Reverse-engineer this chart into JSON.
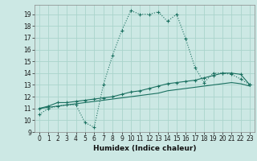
{
  "xlabel": "Humidex (Indice chaleur)",
  "bg_color": "#cce8e4",
  "grid_color": "#aad4cc",
  "line_color": "#1a7060",
  "xlim": [
    -0.5,
    23.5
  ],
  "ylim": [
    9,
    19.8
  ],
  "xticks": [
    0,
    1,
    2,
    3,
    4,
    5,
    6,
    7,
    8,
    9,
    10,
    11,
    12,
    13,
    14,
    15,
    16,
    17,
    18,
    19,
    20,
    21,
    22,
    23
  ],
  "yticks": [
    9,
    10,
    11,
    12,
    13,
    14,
    15,
    16,
    17,
    18,
    19
  ],
  "curve1_x": [
    0,
    1,
    2,
    3,
    4,
    5,
    6,
    7,
    8,
    9,
    10,
    11,
    12,
    13,
    14,
    15,
    16,
    17,
    18,
    19,
    20,
    21,
    22,
    23
  ],
  "curve1_y": [
    10.5,
    11.0,
    11.2,
    11.3,
    11.3,
    9.8,
    9.4,
    13.0,
    15.5,
    17.6,
    19.3,
    19.0,
    19.0,
    19.2,
    18.4,
    19.0,
    16.9,
    14.5,
    13.2,
    14.0,
    14.0,
    13.9,
    13.5,
    13.0
  ],
  "curve2_x": [
    0,
    1,
    2,
    3,
    4,
    5,
    6,
    7,
    8,
    9,
    10,
    11,
    12,
    13,
    14,
    15,
    16,
    17,
    18,
    19,
    20,
    21,
    22,
    23
  ],
  "curve2_y": [
    11.0,
    11.2,
    11.5,
    11.5,
    11.6,
    11.7,
    11.8,
    11.9,
    12.0,
    12.2,
    12.4,
    12.5,
    12.7,
    12.9,
    13.1,
    13.2,
    13.3,
    13.4,
    13.6,
    13.8,
    14.0,
    14.0,
    13.9,
    13.0
  ],
  "curve3_x": [
    0,
    1,
    2,
    3,
    4,
    5,
    6,
    7,
    8,
    9,
    10,
    11,
    12,
    13,
    14,
    15,
    16,
    17,
    18,
    19,
    20,
    21,
    22,
    23
  ],
  "curve3_y": [
    11.0,
    11.1,
    11.2,
    11.3,
    11.4,
    11.5,
    11.6,
    11.7,
    11.8,
    11.9,
    12.0,
    12.1,
    12.2,
    12.3,
    12.5,
    12.6,
    12.7,
    12.8,
    12.9,
    13.0,
    13.1,
    13.2,
    13.1,
    12.9
  ],
  "tick_fontsize": 5.5,
  "xlabel_fontsize": 6.5
}
